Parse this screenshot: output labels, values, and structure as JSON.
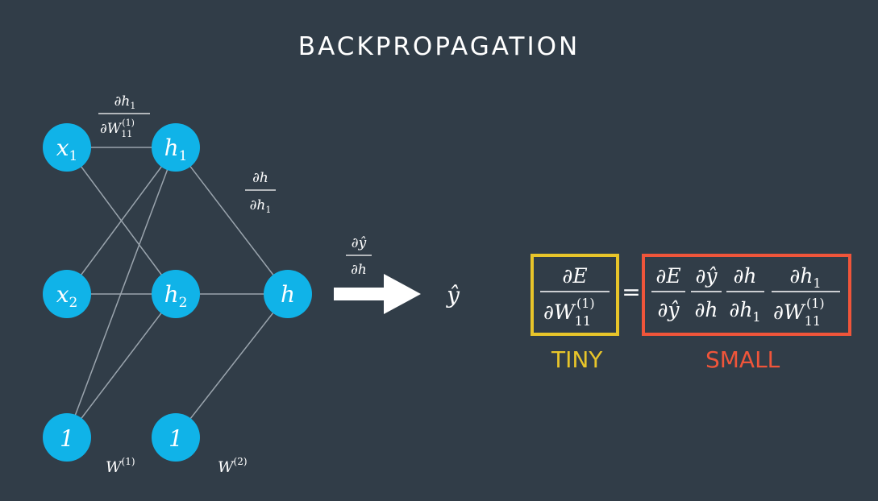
{
  "title": "BACKPROPAGATION",
  "nodes": {
    "x1": {
      "var": "x",
      "sub": "1"
    },
    "x2": {
      "var": "x",
      "sub": "2"
    },
    "bias1": {
      "label": "1"
    },
    "h1": {
      "var": "h",
      "sub": "1"
    },
    "h2": {
      "var": "h",
      "sub": "2"
    },
    "bias2": {
      "label": "1"
    },
    "h": {
      "var": "h"
    }
  },
  "weight_labels": {
    "w1": {
      "var": "W",
      "sup": "(1)"
    },
    "w2": {
      "var": "W",
      "sup": "(2)"
    }
  },
  "edge_labels": {
    "x1_h1": {
      "num_var": "h",
      "num_sub": "1",
      "den_var": "W",
      "den_sub": "11",
      "den_sup": "(1)"
    },
    "h1_h": {
      "num_var": "h",
      "den_var": "h",
      "den_sub": "1"
    },
    "arrow": {
      "num_var": "ŷ",
      "den_var": "h"
    }
  },
  "output": {
    "label": "ŷ"
  },
  "equation": {
    "lhs": {
      "num_var": "E",
      "den_var": "W",
      "den_sub": "11",
      "den_sup": "(1)"
    },
    "equals": "=",
    "rhs": [
      {
        "num_var": "E",
        "den_var": "ŷ"
      },
      {
        "num_var": "ŷ",
        "den_var": "h"
      },
      {
        "num_var": "h",
        "den_var": "h",
        "den_sub": "1"
      },
      {
        "num_var": "h",
        "num_sub": "1",
        "den_var": "W",
        "den_sub": "11",
        "den_sup": "(1)"
      }
    ]
  },
  "captions": {
    "tiny": "TINY",
    "small": "SMALL"
  },
  "colors": {
    "background": "#313d48",
    "node": "#10b3e8",
    "edge": "#9aa4ad",
    "tiny": "#e8c52a",
    "small": "#f0553a",
    "text": "#ffffff"
  }
}
